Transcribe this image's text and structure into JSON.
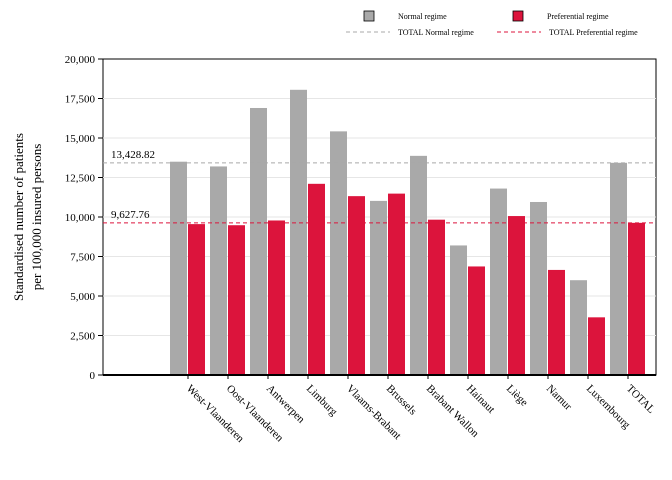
{
  "chart_data": {
    "type": "bar",
    "title": "",
    "xlabel": "",
    "ylabel_lines": [
      "Standardised number of patients",
      "per 100,000 insured persons"
    ],
    "ylim": [
      0,
      20000
    ],
    "yticks": [
      0,
      2500,
      5000,
      7500,
      10000,
      12500,
      15000,
      17500,
      20000
    ],
    "ytick_labels": [
      "0",
      "2,500",
      "5,000",
      "7,500",
      "10,000",
      "12,500",
      "15,000",
      "17,500",
      "20,000"
    ],
    "grid": true,
    "legend_position": "top-right",
    "categories": [
      "West-Vlaanderen",
      "Oost-Vlaanderen",
      "Antwerpen",
      "Limburg",
      "Vlaams-Brabant",
      "Brussels",
      "Brabant Wallon",
      "Hainaut",
      "Liège",
      "Namur",
      "Luxembourg",
      "TOTAL"
    ],
    "series": [
      {
        "name": "Normal regime",
        "color": "#a9a9a9",
        "values": [
          13500,
          13200,
          16900,
          18050,
          15420,
          11020,
          13870,
          8200,
          11800,
          10950,
          6000,
          13430
        ]
      },
      {
        "name": "Preferential regime",
        "color": "#dc143c",
        "values": [
          9550,
          9480,
          9780,
          12100,
          11320,
          11480,
          9830,
          6870,
          10060,
          6650,
          3650,
          9630
        ]
      }
    ],
    "reference_lines": [
      {
        "name": "TOTAL Normal regime",
        "value": 13428.82,
        "label": "13,428.82",
        "color": "#a9a9a9"
      },
      {
        "name": "TOTAL Preferential regime",
        "value": 9627.76,
        "label": "9,627.76",
        "color": "#dc143c"
      }
    ]
  }
}
